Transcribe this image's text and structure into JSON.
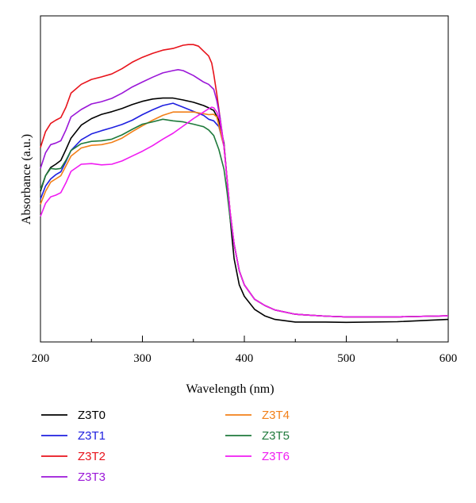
{
  "chart_data": {
    "type": "line",
    "title": "",
    "xlabel": "Wavelength (nm)",
    "ylabel": "Absorbance (a.u.)",
    "xlim": [
      200,
      600
    ],
    "ylim": [
      0,
      1
    ],
    "x_ticks": [
      "200",
      "300",
      "400",
      "500",
      "600"
    ],
    "y_ticks_shown": false,
    "grid": false,
    "legend_position": "bottom",
    "series": [
      {
        "name": "Z3T0",
        "color": "#000000",
        "points": [
          [
            200,
            0.462
          ],
          [
            205,
            0.51
          ],
          [
            210,
            0.535
          ],
          [
            215,
            0.545
          ],
          [
            220,
            0.557
          ],
          [
            225,
            0.59
          ],
          [
            230,
            0.625
          ],
          [
            240,
            0.665
          ],
          [
            250,
            0.685
          ],
          [
            260,
            0.698
          ],
          [
            270,
            0.706
          ],
          [
            280,
            0.716
          ],
          [
            290,
            0.728
          ],
          [
            300,
            0.738
          ],
          [
            310,
            0.745
          ],
          [
            320,
            0.748
          ],
          [
            330,
            0.748
          ],
          [
            340,
            0.742
          ],
          [
            350,
            0.735
          ],
          [
            360,
            0.725
          ],
          [
            365,
            0.718
          ],
          [
            370,
            0.71
          ],
          [
            375,
            0.68
          ],
          [
            380,
            0.61
          ],
          [
            383,
            0.5
          ],
          [
            386,
            0.38
          ],
          [
            390,
            0.255
          ],
          [
            395,
            0.175
          ],
          [
            400,
            0.14
          ],
          [
            410,
            0.1
          ],
          [
            420,
            0.08
          ],
          [
            430,
            0.069
          ],
          [
            450,
            0.061
          ],
          [
            480,
            0.061
          ],
          [
            500,
            0.06
          ],
          [
            550,
            0.062
          ],
          [
            600,
            0.069
          ]
        ]
      },
      {
        "name": "Z3T1",
        "color": "#1f20e0",
        "points": [
          [
            200,
            0.438
          ],
          [
            205,
            0.478
          ],
          [
            210,
            0.5
          ],
          [
            215,
            0.513
          ],
          [
            220,
            0.522
          ],
          [
            225,
            0.553
          ],
          [
            230,
            0.587
          ],
          [
            240,
            0.62
          ],
          [
            250,
            0.638
          ],
          [
            260,
            0.648
          ],
          [
            270,
            0.657
          ],
          [
            280,
            0.667
          ],
          [
            290,
            0.68
          ],
          [
            300,
            0.697
          ],
          [
            310,
            0.712
          ],
          [
            320,
            0.725
          ],
          [
            330,
            0.732
          ],
          [
            340,
            0.72
          ],
          [
            350,
            0.707
          ],
          [
            360,
            0.695
          ],
          [
            365,
            0.683
          ],
          [
            370,
            0.678
          ],
          [
            375,
            0.66
          ],
          [
            380,
            0.6
          ],
          [
            383,
            0.5
          ],
          [
            386,
            0.4
          ],
          [
            390,
            0.3
          ],
          [
            395,
            0.218
          ],
          [
            400,
            0.175
          ],
          [
            410,
            0.131
          ],
          [
            420,
            0.112
          ],
          [
            430,
            0.098
          ],
          [
            450,
            0.085
          ],
          [
            480,
            0.079
          ],
          [
            500,
            0.077
          ],
          [
            550,
            0.077
          ],
          [
            600,
            0.08
          ]
        ]
      },
      {
        "name": "Z3T2",
        "color": "#e8131b",
        "points": [
          [
            200,
            0.596
          ],
          [
            205,
            0.645
          ],
          [
            210,
            0.67
          ],
          [
            215,
            0.68
          ],
          [
            220,
            0.688
          ],
          [
            225,
            0.72
          ],
          [
            230,
            0.763
          ],
          [
            240,
            0.79
          ],
          [
            250,
            0.805
          ],
          [
            260,
            0.813
          ],
          [
            270,
            0.822
          ],
          [
            280,
            0.838
          ],
          [
            290,
            0.858
          ],
          [
            300,
            0.873
          ],
          [
            310,
            0.885
          ],
          [
            320,
            0.895
          ],
          [
            330,
            0.9
          ],
          [
            340,
            0.91
          ],
          [
            345,
            0.912
          ],
          [
            350,
            0.912
          ],
          [
            355,
            0.907
          ],
          [
            360,
            0.892
          ],
          [
            365,
            0.877
          ],
          [
            368,
            0.855
          ],
          [
            370,
            0.822
          ],
          [
            373,
            0.76
          ],
          [
            376,
            0.69
          ],
          [
            380,
            0.6
          ],
          [
            383,
            0.5
          ],
          [
            386,
            0.4
          ],
          [
            390,
            0.3
          ],
          [
            395,
            0.218
          ],
          [
            400,
            0.175
          ],
          [
            410,
            0.131
          ],
          [
            420,
            0.112
          ],
          [
            430,
            0.098
          ],
          [
            450,
            0.085
          ],
          [
            480,
            0.079
          ],
          [
            500,
            0.077
          ],
          [
            550,
            0.077
          ],
          [
            600,
            0.08
          ]
        ]
      },
      {
        "name": "Z3T3",
        "color": "#9b17d8",
        "points": [
          [
            200,
            0.532
          ],
          [
            205,
            0.58
          ],
          [
            210,
            0.605
          ],
          [
            215,
            0.61
          ],
          [
            220,
            0.617
          ],
          [
            225,
            0.65
          ],
          [
            230,
            0.69
          ],
          [
            240,
            0.713
          ],
          [
            250,
            0.73
          ],
          [
            260,
            0.737
          ],
          [
            270,
            0.747
          ],
          [
            280,
            0.763
          ],
          [
            290,
            0.782
          ],
          [
            300,
            0.797
          ],
          [
            310,
            0.812
          ],
          [
            320,
            0.825
          ],
          [
            330,
            0.832
          ],
          [
            335,
            0.835
          ],
          [
            340,
            0.832
          ],
          [
            350,
            0.817
          ],
          [
            360,
            0.797
          ],
          [
            365,
            0.79
          ],
          [
            370,
            0.775
          ],
          [
            373,
            0.74
          ],
          [
            376,
            0.69
          ],
          [
            380,
            0.6
          ],
          [
            383,
            0.5
          ],
          [
            386,
            0.4
          ],
          [
            390,
            0.3
          ],
          [
            395,
            0.218
          ],
          [
            400,
            0.175
          ],
          [
            410,
            0.131
          ],
          [
            420,
            0.112
          ],
          [
            430,
            0.098
          ],
          [
            450,
            0.085
          ],
          [
            480,
            0.079
          ],
          [
            500,
            0.077
          ],
          [
            550,
            0.077
          ],
          [
            600,
            0.08
          ]
        ]
      },
      {
        "name": "Z3T4",
        "color": "#f28019",
        "points": [
          [
            200,
            0.422
          ],
          [
            205,
            0.462
          ],
          [
            210,
            0.49
          ],
          [
            215,
            0.5
          ],
          [
            220,
            0.51
          ],
          [
            225,
            0.54
          ],
          [
            230,
            0.57
          ],
          [
            240,
            0.595
          ],
          [
            250,
            0.603
          ],
          [
            260,
            0.605
          ],
          [
            270,
            0.612
          ],
          [
            280,
            0.625
          ],
          [
            290,
            0.645
          ],
          [
            300,
            0.663
          ],
          [
            310,
            0.68
          ],
          [
            320,
            0.695
          ],
          [
            330,
            0.705
          ],
          [
            340,
            0.705
          ],
          [
            350,
            0.705
          ],
          [
            360,
            0.7
          ],
          [
            365,
            0.697
          ],
          [
            370,
            0.698
          ],
          [
            373,
            0.69
          ],
          [
            376,
            0.65
          ],
          [
            380,
            0.6
          ],
          [
            383,
            0.5
          ],
          [
            386,
            0.4
          ],
          [
            390,
            0.3
          ],
          [
            395,
            0.218
          ],
          [
            400,
            0.175
          ],
          [
            410,
            0.131
          ],
          [
            420,
            0.112
          ],
          [
            430,
            0.098
          ],
          [
            450,
            0.085
          ],
          [
            480,
            0.079
          ],
          [
            500,
            0.077
          ],
          [
            550,
            0.077
          ],
          [
            600,
            0.08
          ]
        ]
      },
      {
        "name": "Z3T5",
        "color": "#1f7a3c",
        "points": [
          [
            200,
            0.467
          ],
          [
            205,
            0.51
          ],
          [
            210,
            0.532
          ],
          [
            215,
            0.53
          ],
          [
            220,
            0.532
          ],
          [
            225,
            0.557
          ],
          [
            230,
            0.587
          ],
          [
            240,
            0.608
          ],
          [
            250,
            0.615
          ],
          [
            260,
            0.617
          ],
          [
            270,
            0.622
          ],
          [
            280,
            0.635
          ],
          [
            290,
            0.652
          ],
          [
            300,
            0.668
          ],
          [
            310,
            0.675
          ],
          [
            320,
            0.683
          ],
          [
            330,
            0.678
          ],
          [
            340,
            0.675
          ],
          [
            350,
            0.668
          ],
          [
            360,
            0.66
          ],
          [
            365,
            0.65
          ],
          [
            370,
            0.633
          ],
          [
            375,
            0.59
          ],
          [
            380,
            0.53
          ],
          [
            383,
            0.46
          ],
          [
            386,
            0.38
          ],
          [
            390,
            0.3
          ],
          [
            395,
            0.218
          ],
          [
            400,
            0.175
          ],
          [
            410,
            0.131
          ],
          [
            420,
            0.112
          ],
          [
            430,
            0.098
          ],
          [
            450,
            0.085
          ],
          [
            480,
            0.079
          ],
          [
            500,
            0.077
          ],
          [
            550,
            0.077
          ],
          [
            600,
            0.08
          ]
        ]
      },
      {
        "name": "Z3T6",
        "color": "#f01cf2",
        "points": [
          [
            200,
            0.385
          ],
          [
            205,
            0.425
          ],
          [
            210,
            0.445
          ],
          [
            215,
            0.45
          ],
          [
            220,
            0.458
          ],
          [
            225,
            0.488
          ],
          [
            230,
            0.523
          ],
          [
            240,
            0.545
          ],
          [
            250,
            0.547
          ],
          [
            260,
            0.543
          ],
          [
            270,
            0.545
          ],
          [
            280,
            0.555
          ],
          [
            290,
            0.57
          ],
          [
            300,
            0.585
          ],
          [
            310,
            0.602
          ],
          [
            320,
            0.622
          ],
          [
            330,
            0.64
          ],
          [
            340,
            0.662
          ],
          [
            350,
            0.685
          ],
          [
            360,
            0.705
          ],
          [
            365,
            0.715
          ],
          [
            368,
            0.72
          ],
          [
            370,
            0.718
          ],
          [
            373,
            0.705
          ],
          [
            376,
            0.68
          ],
          [
            380,
            0.6
          ],
          [
            383,
            0.5
          ],
          [
            386,
            0.4
          ],
          [
            390,
            0.3
          ],
          [
            395,
            0.218
          ],
          [
            400,
            0.175
          ],
          [
            410,
            0.131
          ],
          [
            420,
            0.112
          ],
          [
            430,
            0.098
          ],
          [
            450,
            0.085
          ],
          [
            480,
            0.079
          ],
          [
            500,
            0.077
          ],
          [
            550,
            0.077
          ],
          [
            600,
            0.08
          ]
        ]
      }
    ]
  }
}
